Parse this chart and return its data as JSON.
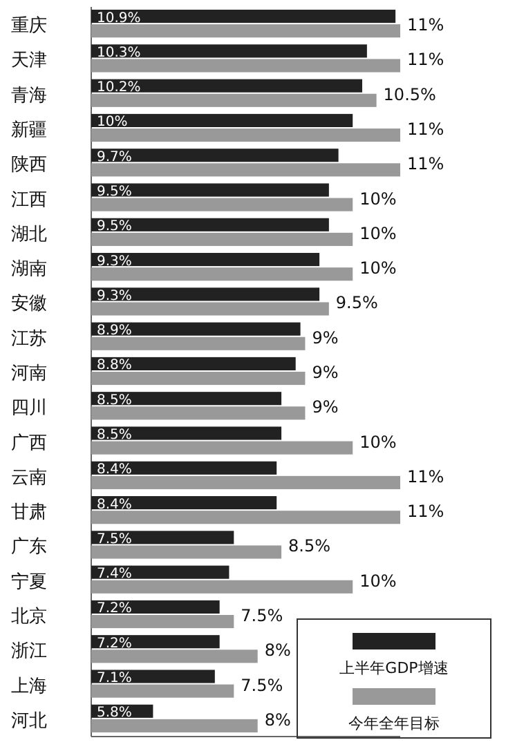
{
  "chart_data": {
    "type": "bar",
    "orientation": "horizontal",
    "categories": [
      "重庆",
      "天津",
      "青海",
      "新疆",
      "陕西",
      "江西",
      "湖北",
      "湖南",
      "安徽",
      "江苏",
      "河南",
      "四川",
      "广西",
      "云南",
      "甘肃",
      "广东",
      "宁夏",
      "北京",
      "浙江",
      "上海",
      "河北"
    ],
    "series": [
      {
        "name": "上半年GDP增速",
        "color": "#222222",
        "values": [
          10.9,
          10.3,
          10.2,
          10,
          9.7,
          9.5,
          9.5,
          9.3,
          9.3,
          8.9,
          8.8,
          8.5,
          8.5,
          8.4,
          8.4,
          7.5,
          7.4,
          7.2,
          7.2,
          7.1,
          5.8
        ],
        "value_labels": [
          "10.9%",
          "10.3%",
          "10.2%",
          "10%",
          "9.7%",
          "9.5%",
          "9.5%",
          "9.3%",
          "9.3%",
          "8.9%",
          "8.8%",
          "8.5%",
          "8.5%",
          "8.4%",
          "8.4%",
          "7.5%",
          "7.4%",
          "7.2%",
          "7.2%",
          "7.1%",
          "5.8%"
        ]
      },
      {
        "name": "今年全年目标",
        "color": "#999999",
        "values": [
          11,
          11,
          10.5,
          11,
          11,
          10,
          10,
          10,
          9.5,
          9,
          9,
          9,
          10,
          11,
          11,
          8.5,
          10,
          7.5,
          8,
          7.5,
          8
        ],
        "value_labels": [
          "11%",
          "11%",
          "10.5%",
          "11%",
          "11%",
          "10%",
          "10%",
          "10%",
          "9.5%",
          "9%",
          "9%",
          "9%",
          "10%",
          "11%",
          "11%",
          "8.5%",
          "10%",
          "7.5%",
          "8%",
          "7.5%",
          "8%"
        ]
      }
    ],
    "xlim": [
      4.5,
      11
    ],
    "tick_labels": false,
    "legend": "bottom right"
  }
}
